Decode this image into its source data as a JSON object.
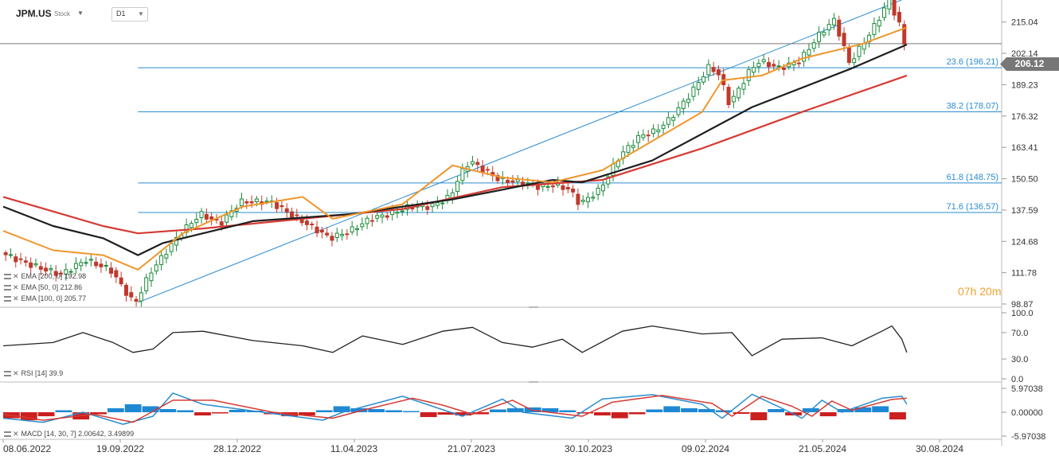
{
  "header": {
    "symbol": "JPM.US",
    "type": "Stock",
    "timeframe": "D1"
  },
  "timer": {
    "hours": "07h",
    "minutes": "20m"
  },
  "last_price": "206.12",
  "indicators": {
    "price_legend": [
      {
        "label": "EMA [200, 0] 192.98"
      },
      {
        "label": "EMA [50, 0] 212.86"
      },
      {
        "label": "EMA [100, 0] 205.77"
      }
    ],
    "rsi_legend": "RSI [14]  39.9",
    "macd_legend": "MACD [14, 30, 7]  2.00642,  3.49899"
  },
  "chart_data": [
    {
      "type": "candlestick",
      "title": "JPM.US",
      "x_dates": [
        "08.06.2022",
        "19.09.2022",
        "28.12.2022",
        "11.04.2023",
        "21.07.2023",
        "30.10.2023",
        "09.02.2024",
        "21.05.2024",
        "30.08.2024"
      ],
      "y_ticks": [
        215.04,
        202.14,
        189.23,
        176.32,
        163.41,
        150.5,
        137.59,
        124.68,
        111.78,
        98.87
      ],
      "ylim": [
        98.87,
        221.5
      ],
      "close_path": [
        [
          0,
          120
        ],
        [
          0.03,
          115
        ],
        [
          0.06,
          111
        ],
        [
          0.085,
          117
        ],
        [
          0.11,
          113
        ],
        [
          0.13,
          101
        ],
        [
          0.135,
          99.5
        ],
        [
          0.15,
          112
        ],
        [
          0.18,
          128
        ],
        [
          0.2,
          136
        ],
        [
          0.22,
          132
        ],
        [
          0.24,
          141
        ],
        [
          0.27,
          141
        ],
        [
          0.29,
          136
        ],
        [
          0.31,
          131
        ],
        [
          0.33,
          126
        ],
        [
          0.35,
          129
        ],
        [
          0.37,
          134
        ],
        [
          0.39,
          136
        ],
        [
          0.41,
          139
        ],
        [
          0.43,
          139
        ],
        [
          0.45,
          143
        ],
        [
          0.46,
          152
        ],
        [
          0.47,
          158
        ],
        [
          0.48,
          155
        ],
        [
          0.5,
          150
        ],
        [
          0.52,
          149
        ],
        [
          0.54,
          147
        ],
        [
          0.555,
          148
        ],
        [
          0.57,
          146
        ],
        [
          0.58,
          140
        ],
        [
          0.6,
          146
        ],
        [
          0.62,
          160
        ],
        [
          0.64,
          168
        ],
        [
          0.655,
          170
        ],
        [
          0.67,
          175
        ],
        [
          0.69,
          185
        ],
        [
          0.71,
          197
        ],
        [
          0.72,
          193
        ],
        [
          0.73,
          181
        ],
        [
          0.75,
          195
        ],
        [
          0.76,
          199
        ],
        [
          0.78,
          196
        ],
        [
          0.8,
          199
        ],
        [
          0.82,
          210
        ],
        [
          0.835,
          216
        ],
        [
          0.85,
          198
        ],
        [
          0.87,
          210
        ],
        [
          0.89,
          224
        ],
        [
          0.9,
          214
        ],
        [
          0.905,
          206.12
        ]
      ],
      "ema_200": [
        [
          0,
          143
        ],
        [
          0.05,
          137
        ],
        [
          0.1,
          131
        ],
        [
          0.135,
          128
        ],
        [
          0.2,
          130
        ],
        [
          0.3,
          134
        ],
        [
          0.4,
          138
        ],
        [
          0.5,
          147
        ],
        [
          0.6,
          150
        ],
        [
          0.7,
          163
        ],
        [
          0.8,
          178
        ],
        [
          0.905,
          193
        ]
      ],
      "ema_100": [
        [
          0,
          139
        ],
        [
          0.05,
          131
        ],
        [
          0.1,
          126
        ],
        [
          0.135,
          119
        ],
        [
          0.16,
          124
        ],
        [
          0.25,
          133
        ],
        [
          0.35,
          136
        ],
        [
          0.45,
          142
        ],
        [
          0.55,
          150
        ],
        [
          0.58,
          149
        ],
        [
          0.65,
          158
        ],
        [
          0.75,
          180
        ],
        [
          0.85,
          196
        ],
        [
          0.905,
          205.77
        ]
      ],
      "ema_50": [
        [
          0,
          129
        ],
        [
          0.05,
          121
        ],
        [
          0.1,
          119
        ],
        [
          0.135,
          113
        ],
        [
          0.18,
          128
        ],
        [
          0.24,
          139
        ],
        [
          0.3,
          143
        ],
        [
          0.33,
          134
        ],
        [
          0.4,
          140
        ],
        [
          0.45,
          156
        ],
        [
          0.5,
          151
        ],
        [
          0.55,
          149
        ],
        [
          0.6,
          154
        ],
        [
          0.7,
          178
        ],
        [
          0.72,
          191
        ],
        [
          0.76,
          193
        ],
        [
          0.8,
          200
        ],
        [
          0.86,
          206
        ],
        [
          0.905,
          212.86
        ]
      ],
      "fibonacci": [
        {
          "label": "23.6 (196.21)",
          "value": 196.21
        },
        {
          "label": "38.2 (178.07)",
          "value": 178.07
        },
        {
          "label": "61.8 (148.75)",
          "value": 148.75
        },
        {
          "label": "71.6 (136.57)",
          "value": 136.57
        }
      ],
      "channel_line": [
        [
          0.135,
          99.5
        ],
        [
          0.905,
          225
        ]
      ]
    },
    {
      "type": "line",
      "title": "RSI",
      "y_ticks": [
        100.0,
        70.0,
        30.0,
        0.0
      ],
      "ylim": [
        0,
        100
      ],
      "values": [
        [
          0,
          50
        ],
        [
          0.05,
          55
        ],
        [
          0.08,
          70
        ],
        [
          0.11,
          55
        ],
        [
          0.13,
          40
        ],
        [
          0.15,
          45
        ],
        [
          0.17,
          70
        ],
        [
          0.2,
          72
        ],
        [
          0.25,
          58
        ],
        [
          0.3,
          50
        ],
        [
          0.33,
          40
        ],
        [
          0.36,
          65
        ],
        [
          0.4,
          52
        ],
        [
          0.44,
          72
        ],
        [
          0.47,
          78
        ],
        [
          0.5,
          55
        ],
        [
          0.53,
          48
        ],
        [
          0.56,
          60
        ],
        [
          0.58,
          40
        ],
        [
          0.62,
          72
        ],
        [
          0.65,
          80
        ],
        [
          0.7,
          68
        ],
        [
          0.73,
          70
        ],
        [
          0.75,
          35
        ],
        [
          0.78,
          60
        ],
        [
          0.82,
          62
        ],
        [
          0.85,
          50
        ],
        [
          0.88,
          72
        ],
        [
          0.89,
          80
        ],
        [
          0.9,
          60
        ],
        [
          0.905,
          39.9
        ]
      ]
    },
    {
      "type": "bar",
      "title": "MACD",
      "y_ticks": [
        5.97038,
        0.0,
        -5.97038
      ],
      "ylim": [
        -5.97038,
        5.97038
      ],
      "histogram_values": [
        -1.5,
        -2.0,
        -1.0,
        0.5,
        -1.8,
        -0.5,
        1.0,
        2.0,
        1.5,
        0.8,
        0.5,
        -0.8,
        -0.3,
        0.6,
        0.4,
        -0.5,
        -1.0,
        -0.8,
        0.5,
        1.5,
        1.0,
        0.8,
        0.5,
        0.3,
        -1.2,
        -0.6,
        -0.8,
        -0.5,
        0.7,
        1.0,
        1.2,
        1.0,
        0.5,
        -0.3,
        -0.8,
        -1.5,
        -0.5,
        0.7,
        1.5,
        1.0,
        0.8,
        0.5,
        -0.4,
        -2.0,
        0.8,
        -0.8,
        1.0,
        -1.0,
        0.8,
        1.2,
        1.5,
        -1.8
      ],
      "macd_line": [
        [
          0,
          -1.5
        ],
        [
          0.04,
          -2.5
        ],
        [
          0.08,
          0
        ],
        [
          0.12,
          -3
        ],
        [
          0.15,
          -1
        ],
        [
          0.17,
          4.8
        ],
        [
          0.2,
          2
        ],
        [
          0.26,
          0
        ],
        [
          0.32,
          -2
        ],
        [
          0.34,
          0
        ],
        [
          0.4,
          4
        ],
        [
          0.43,
          1.5
        ],
        [
          0.46,
          -1
        ],
        [
          0.5,
          3.3
        ],
        [
          0.52,
          0
        ],
        [
          0.57,
          -1.5
        ],
        [
          0.6,
          3.3
        ],
        [
          0.65,
          4.4
        ],
        [
          0.7,
          2
        ],
        [
          0.72,
          -1.5
        ],
        [
          0.75,
          4.5
        ],
        [
          0.78,
          1
        ],
        [
          0.8,
          -1.5
        ],
        [
          0.82,
          3
        ],
        [
          0.84,
          0
        ],
        [
          0.88,
          3.5
        ],
        [
          0.9,
          4
        ],
        [
          0.905,
          2.00642
        ]
      ],
      "signal_line": [
        [
          0,
          -0.5
        ],
        [
          0.04,
          -2
        ],
        [
          0.09,
          -0.5
        ],
        [
          0.13,
          -2.5
        ],
        [
          0.17,
          3
        ],
        [
          0.21,
          3
        ],
        [
          0.27,
          0
        ],
        [
          0.33,
          -1.5
        ],
        [
          0.36,
          0.5
        ],
        [
          0.41,
          3.5
        ],
        [
          0.44,
          1.8
        ],
        [
          0.47,
          -0.5
        ],
        [
          0.51,
          3
        ],
        [
          0.53,
          0.5
        ],
        [
          0.58,
          -1
        ],
        [
          0.61,
          2.5
        ],
        [
          0.66,
          4.2
        ],
        [
          0.71,
          2.2
        ],
        [
          0.73,
          -1
        ],
        [
          0.76,
          4
        ],
        [
          0.79,
          1.5
        ],
        [
          0.81,
          -1
        ],
        [
          0.83,
          2.8
        ],
        [
          0.85,
          0.5
        ],
        [
          0.89,
          3.2
        ],
        [
          0.905,
          3.49899
        ]
      ]
    }
  ]
}
